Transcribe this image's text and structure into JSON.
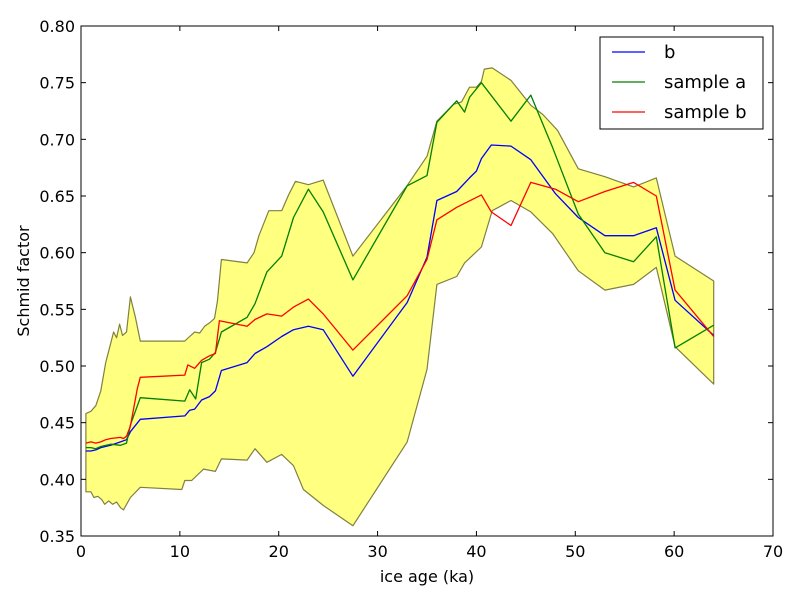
{
  "chart_data": {
    "type": "line",
    "xlabel": "ice age (ka)",
    "ylabel": "Schmid factor",
    "xlim": [
      0,
      70
    ],
    "ylim": [
      0.35,
      0.8
    ],
    "xticks": [
      0,
      10,
      20,
      30,
      40,
      50,
      60,
      70
    ],
    "yticks": [
      0.35,
      0.4,
      0.45,
      0.5,
      0.55,
      0.6,
      0.65,
      0.7,
      0.75,
      0.8
    ],
    "xtick_labels": [
      "0",
      "10",
      "20",
      "30",
      "40",
      "50",
      "60",
      "70"
    ],
    "ytick_labels": [
      "0.35",
      "0.40",
      "0.45",
      "0.50",
      "0.55",
      "0.60",
      "0.65",
      "0.70",
      "0.75",
      "0.80"
    ],
    "grid": false,
    "legend_position": "top-right",
    "band": {
      "fill_color": "#ffff80",
      "edge_color": "#808040",
      "upper": [
        [
          0.5,
          0.458
        ],
        [
          1.0,
          0.46
        ],
        [
          1.5,
          0.465
        ],
        [
          2.0,
          0.478
        ],
        [
          2.5,
          0.503
        ],
        [
          3.0,
          0.52
        ],
        [
          3.3,
          0.53
        ],
        [
          3.6,
          0.525
        ],
        [
          3.9,
          0.537
        ],
        [
          4.2,
          0.527
        ],
        [
          4.6,
          0.53
        ],
        [
          5.0,
          0.561
        ],
        [
          5.5,
          0.543
        ],
        [
          6.0,
          0.522
        ],
        [
          10.5,
          0.522
        ],
        [
          11.0,
          0.526
        ],
        [
          11.5,
          0.53
        ],
        [
          12.0,
          0.529
        ],
        [
          12.5,
          0.535
        ],
        [
          13.0,
          0.538
        ],
        [
          13.5,
          0.542
        ],
        [
          13.8,
          0.557
        ],
        [
          14.2,
          0.594
        ],
        [
          16.8,
          0.591
        ],
        [
          17.5,
          0.6
        ],
        [
          18.0,
          0.615
        ],
        [
          19.0,
          0.637
        ],
        [
          20.3,
          0.637
        ],
        [
          21.0,
          0.651
        ],
        [
          21.7,
          0.663
        ],
        [
          23.0,
          0.66
        ],
        [
          24.5,
          0.664
        ],
        [
          27.5,
          0.597
        ],
        [
          32.9,
          0.658
        ],
        [
          35.0,
          0.685
        ],
        [
          36.0,
          0.716
        ],
        [
          37.7,
          0.731
        ],
        [
          38.5,
          0.733
        ],
        [
          39.3,
          0.746
        ],
        [
          40.0,
          0.746
        ],
        [
          40.5,
          0.751
        ],
        [
          40.8,
          0.762
        ],
        [
          41.6,
          0.763
        ],
        [
          43.5,
          0.752
        ],
        [
          45.5,
          0.73
        ],
        [
          46.7,
          0.722
        ],
        [
          48.2,
          0.708
        ],
        [
          50.3,
          0.674
        ],
        [
          53.0,
          0.667
        ],
        [
          55.9,
          0.658
        ],
        [
          58.2,
          0.666
        ],
        [
          60.1,
          0.597
        ],
        [
          64.0,
          0.575
        ]
      ],
      "lower": [
        [
          64.0,
          0.484
        ],
        [
          60.1,
          0.517
        ],
        [
          58.2,
          0.587
        ],
        [
          55.9,
          0.572
        ],
        [
          53.0,
          0.567
        ],
        [
          50.3,
          0.584
        ],
        [
          47.7,
          0.617
        ],
        [
          45.5,
          0.636
        ],
        [
          43.5,
          0.646
        ],
        [
          41.6,
          0.637
        ],
        [
          40.5,
          0.605
        ],
        [
          38.8,
          0.591
        ],
        [
          38.0,
          0.579
        ],
        [
          36.0,
          0.572
        ],
        [
          35.0,
          0.497
        ],
        [
          33.0,
          0.433
        ],
        [
          27.5,
          0.359
        ],
        [
          24.5,
          0.377
        ],
        [
          22.5,
          0.391
        ],
        [
          21.5,
          0.412
        ],
        [
          20.3,
          0.422
        ],
        [
          18.8,
          0.415
        ],
        [
          17.6,
          0.427
        ],
        [
          16.8,
          0.417
        ],
        [
          14.2,
          0.418
        ],
        [
          13.6,
          0.407
        ],
        [
          12.4,
          0.409
        ],
        [
          11.2,
          0.399
        ],
        [
          10.5,
          0.399
        ],
        [
          10.2,
          0.391
        ],
        [
          6.0,
          0.393
        ],
        [
          5.0,
          0.384
        ],
        [
          4.3,
          0.373
        ],
        [
          4.0,
          0.375
        ],
        [
          3.6,
          0.38
        ],
        [
          3.2,
          0.378
        ],
        [
          2.8,
          0.381
        ],
        [
          2.4,
          0.378
        ],
        [
          2.1,
          0.382
        ],
        [
          1.7,
          0.385
        ],
        [
          1.3,
          0.384
        ],
        [
          1.0,
          0.389
        ],
        [
          0.5,
          0.389
        ]
      ]
    },
    "series": [
      {
        "name": "b",
        "color": "#0000ff",
        "points": [
          [
            0.5,
            0.425
          ],
          [
            1.0,
            0.425
          ],
          [
            1.5,
            0.426
          ],
          [
            2.0,
            0.428
          ],
          [
            3.0,
            0.43
          ],
          [
            4.0,
            0.433
          ],
          [
            4.6,
            0.435
          ],
          [
            5.0,
            0.442
          ],
          [
            6.0,
            0.453
          ],
          [
            10.5,
            0.456
          ],
          [
            11.0,
            0.461
          ],
          [
            11.5,
            0.462
          ],
          [
            12.2,
            0.47
          ],
          [
            13.0,
            0.473
          ],
          [
            13.6,
            0.478
          ],
          [
            14.2,
            0.496
          ],
          [
            16.8,
            0.503
          ],
          [
            17.6,
            0.511
          ],
          [
            18.8,
            0.517
          ],
          [
            20.3,
            0.526
          ],
          [
            21.5,
            0.532
          ],
          [
            23.0,
            0.535
          ],
          [
            24.5,
            0.532
          ],
          [
            27.5,
            0.491
          ],
          [
            33.0,
            0.556
          ],
          [
            35.0,
            0.596
          ],
          [
            36.0,
            0.646
          ],
          [
            38.0,
            0.654
          ],
          [
            39.3,
            0.666
          ],
          [
            40.0,
            0.672
          ],
          [
            40.5,
            0.683
          ],
          [
            41.5,
            0.695
          ],
          [
            43.5,
            0.694
          ],
          [
            45.5,
            0.682
          ],
          [
            48.0,
            0.652
          ],
          [
            50.3,
            0.631
          ],
          [
            53.0,
            0.615
          ],
          [
            55.9,
            0.615
          ],
          [
            58.2,
            0.622
          ],
          [
            60.1,
            0.558
          ],
          [
            64.0,
            0.527
          ]
        ]
      },
      {
        "name": "sample a",
        "color": "#008000",
        "points": [
          [
            0.5,
            0.428
          ],
          [
            1.0,
            0.428
          ],
          [
            1.5,
            0.427
          ],
          [
            2.0,
            0.429
          ],
          [
            3.0,
            0.431
          ],
          [
            4.0,
            0.43
          ],
          [
            4.6,
            0.432
          ],
          [
            5.0,
            0.448
          ],
          [
            6.0,
            0.472
          ],
          [
            10.5,
            0.469
          ],
          [
            11.0,
            0.479
          ],
          [
            11.6,
            0.471
          ],
          [
            12.2,
            0.503
          ],
          [
            13.0,
            0.506
          ],
          [
            13.6,
            0.512
          ],
          [
            14.2,
            0.53
          ],
          [
            16.8,
            0.543
          ],
          [
            17.6,
            0.555
          ],
          [
            18.8,
            0.583
          ],
          [
            20.3,
            0.597
          ],
          [
            21.5,
            0.631
          ],
          [
            23.0,
            0.656
          ],
          [
            24.5,
            0.636
          ],
          [
            27.5,
            0.576
          ],
          [
            33.0,
            0.659
          ],
          [
            35.0,
            0.668
          ],
          [
            36.0,
            0.715
          ],
          [
            38.0,
            0.734
          ],
          [
            38.8,
            0.724
          ],
          [
            39.3,
            0.737
          ],
          [
            40.5,
            0.75
          ],
          [
            43.5,
            0.716
          ],
          [
            45.5,
            0.739
          ],
          [
            47.7,
            0.693
          ],
          [
            50.3,
            0.634
          ],
          [
            53.0,
            0.6
          ],
          [
            55.9,
            0.592
          ],
          [
            58.2,
            0.614
          ],
          [
            60.1,
            0.516
          ],
          [
            64.0,
            0.536
          ]
        ]
      },
      {
        "name": "sample b",
        "color": "#ff0000",
        "points": [
          [
            0.5,
            0.432
          ],
          [
            1.0,
            0.433
          ],
          [
            1.5,
            0.432
          ],
          [
            2.0,
            0.433
          ],
          [
            2.5,
            0.435
          ],
          [
            3.0,
            0.436
          ],
          [
            4.0,
            0.437
          ],
          [
            4.3,
            0.436
          ],
          [
            4.6,
            0.438
          ],
          [
            5.0,
            0.447
          ],
          [
            5.7,
            0.48
          ],
          [
            6.0,
            0.49
          ],
          [
            10.5,
            0.492
          ],
          [
            10.8,
            0.501
          ],
          [
            11.5,
            0.498
          ],
          [
            12.2,
            0.505
          ],
          [
            13.0,
            0.509
          ],
          [
            13.6,
            0.511
          ],
          [
            14.0,
            0.54
          ],
          [
            16.8,
            0.535
          ],
          [
            17.6,
            0.541
          ],
          [
            18.8,
            0.546
          ],
          [
            20.3,
            0.544
          ],
          [
            21.5,
            0.552
          ],
          [
            23.0,
            0.559
          ],
          [
            24.5,
            0.546
          ],
          [
            27.5,
            0.514
          ],
          [
            33.0,
            0.562
          ],
          [
            35.0,
            0.594
          ],
          [
            36.0,
            0.629
          ],
          [
            38.0,
            0.64
          ],
          [
            40.5,
            0.651
          ],
          [
            41.5,
            0.636
          ],
          [
            43.5,
            0.624
          ],
          [
            45.5,
            0.662
          ],
          [
            48.0,
            0.656
          ],
          [
            50.3,
            0.645
          ],
          [
            53.0,
            0.654
          ],
          [
            55.9,
            0.662
          ],
          [
            58.2,
            0.65
          ],
          [
            60.1,
            0.567
          ],
          [
            64.0,
            0.526
          ]
        ]
      }
    ]
  }
}
